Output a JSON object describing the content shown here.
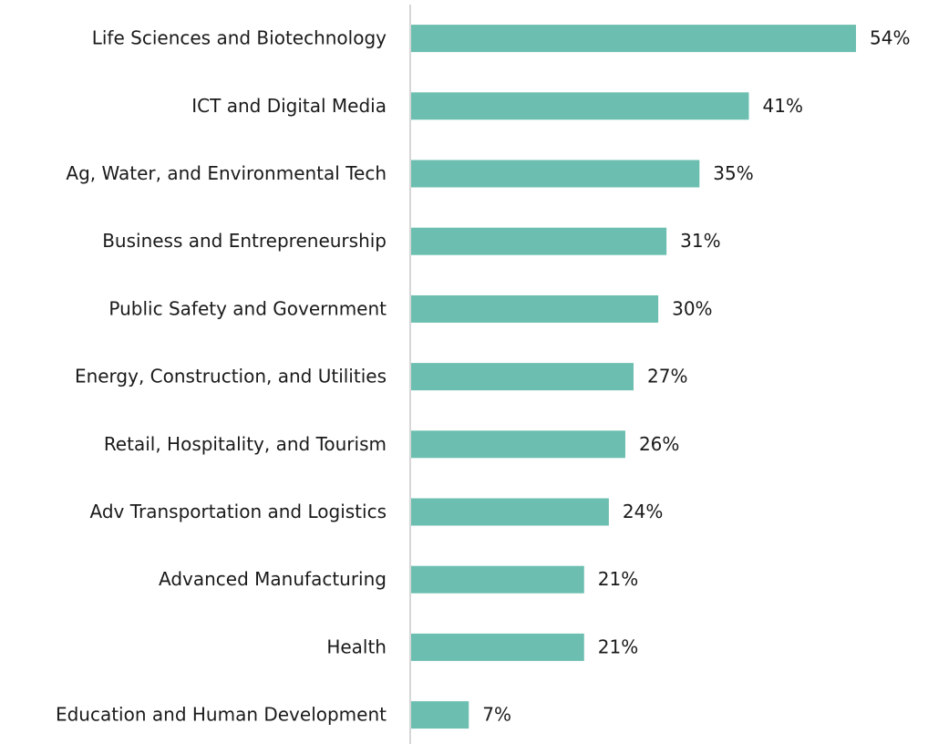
{
  "chart_data": {
    "type": "bar",
    "orientation": "horizontal",
    "categories": [
      "Life Sciences and Biotechnology",
      "ICT and Digital Media",
      "Ag, Water, and Environmental Tech",
      "Business and Entrepreneurship",
      "Public Safety and Government",
      "Energy, Construction, and Utilities",
      "Retail, Hospitality, and Tourism",
      "Adv Transportation and Logistics",
      "Advanced Manufacturing",
      "Health",
      "Education and Human Development"
    ],
    "values": [
      54,
      41,
      35,
      31,
      30,
      27,
      26,
      24,
      21,
      21,
      7
    ],
    "value_labels": [
      "54%",
      "41%",
      "35%",
      "31%",
      "30%",
      "27%",
      "26%",
      "24%",
      "21%",
      "21%",
      "7%"
    ],
    "color": "#6cbfb0"
  }
}
